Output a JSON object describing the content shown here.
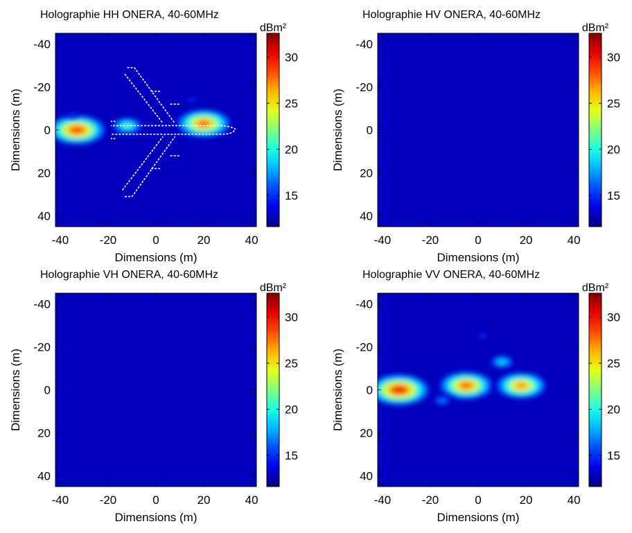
{
  "chart_data": [
    {
      "type": "heatmap",
      "title": "Holographie HH ONERA, 40-60MHz",
      "x_label": "Dimensions (m)",
      "y_label": "Dimensions (m)",
      "xlim": [
        -42,
        42
      ],
      "ylim": [
        45,
        -45
      ],
      "xticks": [
        -40,
        -20,
        0,
        20,
        40
      ],
      "yticks": [
        -40,
        -20,
        0,
        20,
        40
      ],
      "colorbar": {
        "label": "dBm²",
        "lim": [
          11.6,
          32.6
        ],
        "ticks": [
          15,
          20,
          25,
          30
        ]
      },
      "hotspots": {
        "x": [
          -33,
          -12,
          20,
          15,
          -35
        ],
        "y": [
          0,
          -2,
          -3,
          -14,
          -7
        ],
        "values": [
          30,
          22,
          29,
          16,
          16
        ]
      }
    },
    {
      "type": "heatmap",
      "title": "Holographie HV ONERA, 40-60MHz",
      "x_label": "Dimensions (m)",
      "y_label": "Dimensions (m)",
      "xlim": [
        -42,
        42
      ],
      "ylim": [
        45,
        -45
      ],
      "xticks": [
        -40,
        -20,
        0,
        20,
        40
      ],
      "yticks": [
        -40,
        -20,
        0,
        20,
        40
      ],
      "colorbar": {
        "label": "dBm²",
        "lim": [
          11.6,
          32.6
        ],
        "ticks": [
          15,
          20,
          25,
          30
        ]
      },
      "hotspots": {
        "x": [],
        "y": [],
        "values": []
      }
    },
    {
      "type": "heatmap",
      "title": "Holographie VH ONERA, 40-60MHz",
      "x_label": "Dimensions (m)",
      "y_label": "Dimensions (m)",
      "xlim": [
        -42,
        42
      ],
      "ylim": [
        45,
        -45
      ],
      "xticks": [
        -40,
        -20,
        0,
        20,
        40
      ],
      "yticks": [
        -40,
        -20,
        0,
        20,
        40
      ],
      "colorbar": {
        "label": "dBm²",
        "lim": [
          11.6,
          32.6
        ],
        "ticks": [
          15,
          20,
          25,
          30
        ]
      },
      "hotspots": {
        "x": [],
        "y": [],
        "values": []
      }
    },
    {
      "type": "heatmap",
      "title": "Holographie VV ONERA, 40-60MHz",
      "x_label": "Dimensions (m)",
      "y_label": "Dimensions (m)",
      "xlim": [
        -42,
        42
      ],
      "ylim": [
        45,
        -45
      ],
      "xticks": [
        -40,
        -20,
        0,
        20,
        40
      ],
      "yticks": [
        -40,
        -20,
        0,
        20,
        40
      ],
      "colorbar": {
        "label": "dBm²",
        "lim": [
          11.6,
          32.6
        ],
        "ticks": [
          15,
          20,
          25,
          30
        ]
      },
      "hotspots": {
        "x": [
          -33,
          -5,
          18,
          10,
          2,
          -15,
          35
        ],
        "y": [
          0,
          -2,
          -2,
          -13,
          -25,
          5,
          -5
        ],
        "values": [
          31,
          29,
          28,
          20,
          16,
          18,
          15
        ]
      }
    }
  ]
}
